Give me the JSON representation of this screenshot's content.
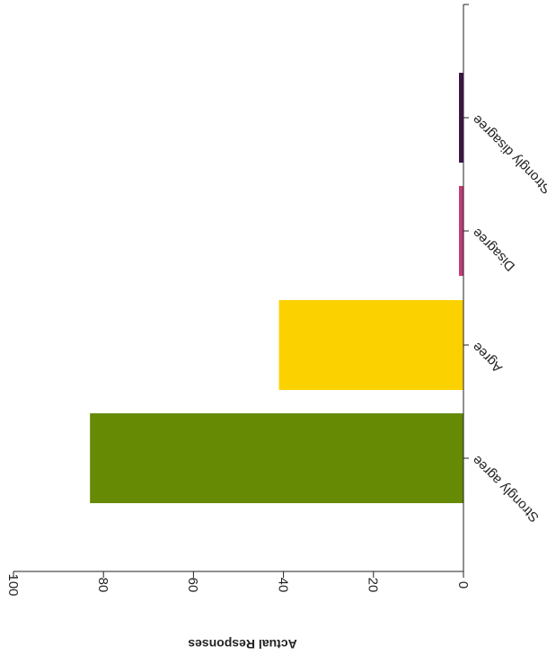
{
  "chart_data": {
    "type": "bar",
    "orientation": "rotated-180",
    "categories": [
      "Strongly agree",
      "Agree",
      "Disagree",
      "Strongly disagree"
    ],
    "values": [
      83,
      41,
      1,
      1
    ],
    "colors": [
      "#668a04",
      "#fcd100",
      "#c23b75",
      "#3d1545"
    ],
    "ylabel": "Actual Responses",
    "ylim": [
      0,
      100
    ],
    "yticks": [
      0,
      20,
      40,
      60,
      80,
      100
    ],
    "grid": false
  }
}
